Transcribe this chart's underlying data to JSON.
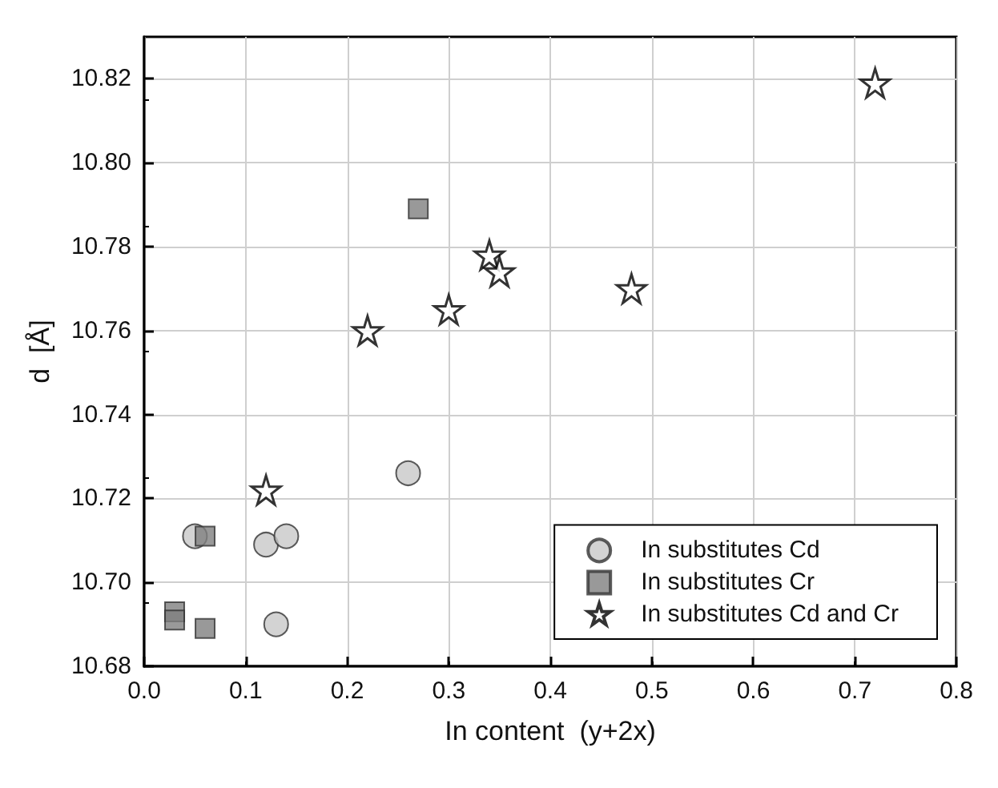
{
  "chart_data": {
    "type": "scatter",
    "xlabel": "In content  (y+2x)",
    "ylabel": "d  [Å]",
    "xlim": [
      0.0,
      0.8
    ],
    "xticks": [
      {
        "value": 0,
        "label": "0.0"
      },
      0.1,
      0.2,
      0.3,
      0.4,
      0.5,
      0.6,
      0.7,
      0.8
    ],
    "ylim": [
      10.68,
      10.83
    ],
    "yticks": [
      {
        "value": 10.68,
        "label": "10.68"
      },
      {
        "value": 10.7,
        "label": "10.70"
      },
      10.72,
      10.74,
      10.76,
      {
        "value": 10.78,
        "label": "10.78"
      },
      {
        "value": 10.8,
        "label": "10.80"
      },
      10.82
    ],
    "grid": true,
    "legend": "bottom right",
    "series": [
      {
        "name": "In substitutes Cd",
        "color": "#c8c8c8",
        "marker": "circle",
        "x": [
          0.05,
          0.12,
          0.14,
          0.13,
          0.26
        ],
        "values": [
          10.711,
          10.709,
          10.711,
          10.69,
          10.726
        ]
      },
      {
        "name": "In substitutes Cr",
        "color": "#808080",
        "marker": "square",
        "x": [
          0.06,
          0.03,
          0.03,
          0.06,
          0.27
        ],
        "values": [
          10.711,
          10.693,
          10.691,
          10.689,
          10.789
        ]
      },
      {
        "name": "In substitutes Cd and Cr",
        "color": "#ffffff",
        "marker": "star",
        "x": [
          0.12,
          0.22,
          0.3,
          0.34,
          0.35,
          0.48,
          0.72
        ],
        "values": [
          10.722,
          10.76,
          10.765,
          10.778,
          10.774,
          10.77,
          10.819
        ]
      }
    ]
  }
}
